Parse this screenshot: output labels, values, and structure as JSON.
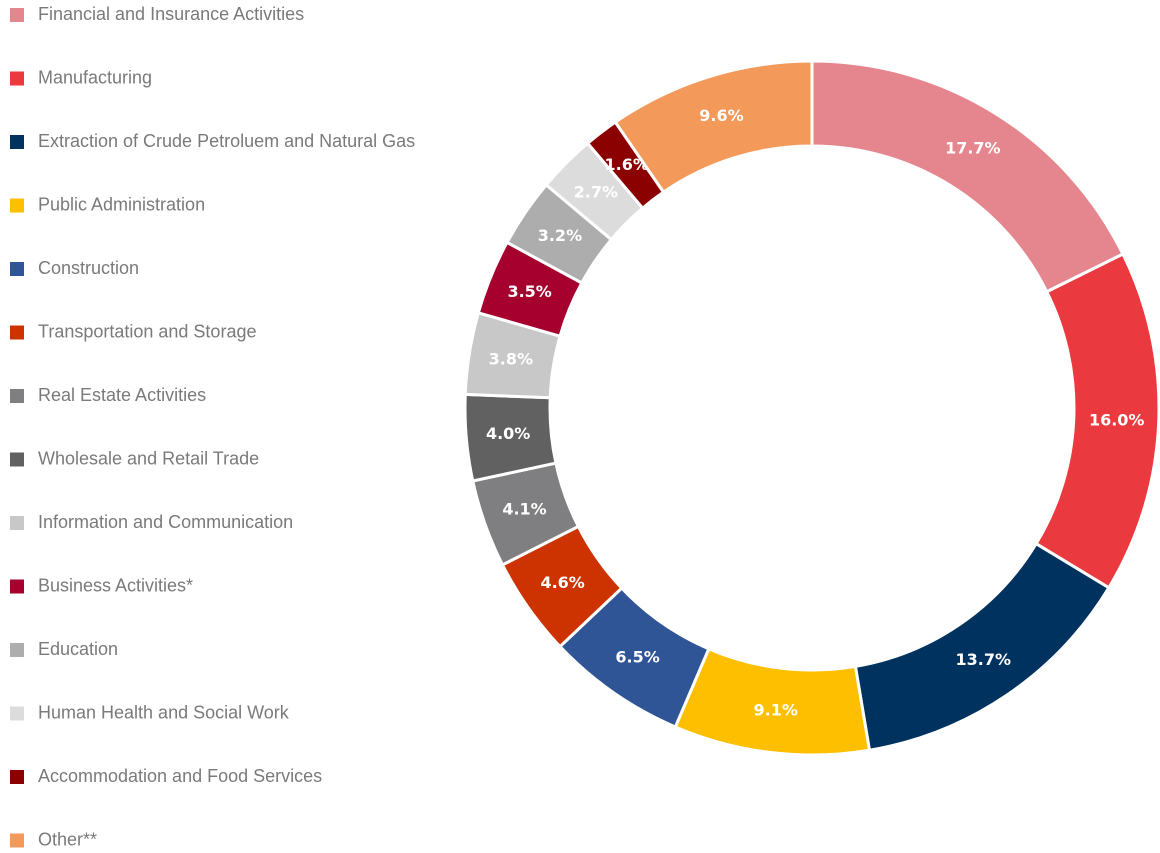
{
  "chart_data": {
    "type": "donut",
    "categories": [
      "Financial and Insurance Activities",
      "Manufacturing",
      "Extraction of Crude Petroluem and Natural Gas",
      "Public Administration",
      "Construction",
      "Transportation and Storage",
      "Real Estate Activities",
      "Wholesale and Retail Trade",
      "Information and Communication",
      "Business Activities*",
      "Education",
      "Human Health and Social Work",
      "Accommodation and Food Services",
      "Other**"
    ],
    "values": [
      17.7,
      16.0,
      13.7,
      9.1,
      6.5,
      4.6,
      4.1,
      4.0,
      3.8,
      3.5,
      3.2,
      2.7,
      1.6,
      9.6
    ],
    "value_labels": [
      "17.7%",
      "16.0%",
      "13.7%",
      "9.1%",
      "6.5%",
      "4.6%",
      "4.1%",
      "4.0%",
      "3.8%",
      "3.5%",
      "3.2%",
      "2.7%",
      "1.6%",
      "9.6%"
    ],
    "colors": [
      "#e5858d",
      "#eb3a3f",
      "#00325f",
      "#fdbf00",
      "#2f5597",
      "#cc3300",
      "#7f7f81",
      "#616162",
      "#c8c8c9",
      "#a6002e",
      "#adadae",
      "#dcdcdd",
      "#8b0000",
      "#f3995a"
    ],
    "legend": "left"
  }
}
